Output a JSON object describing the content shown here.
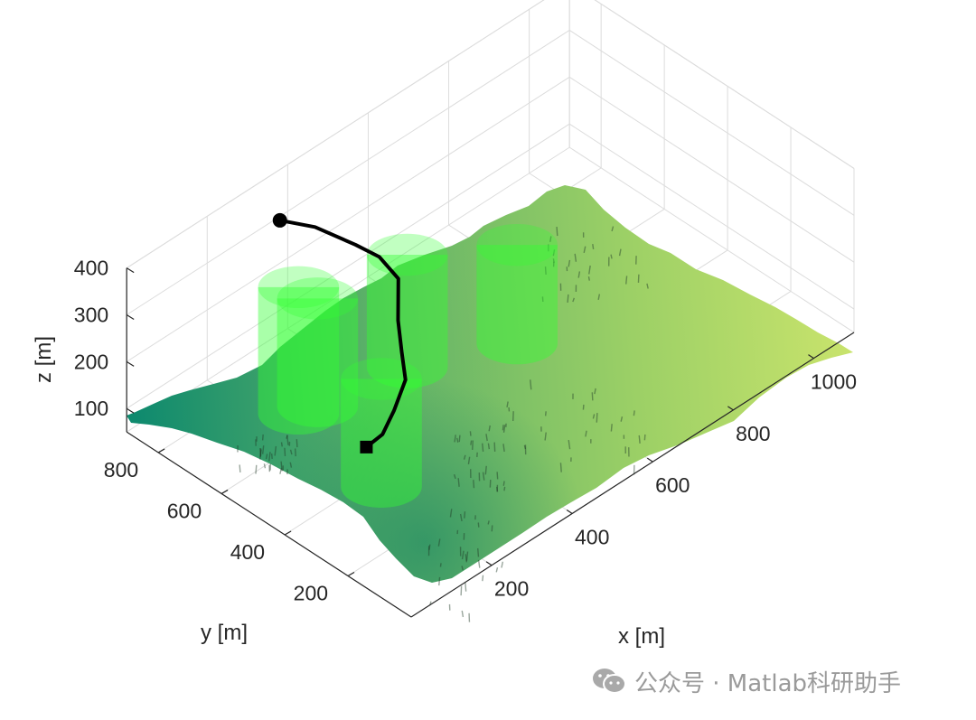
{
  "chart_data": {
    "type": "surface3d",
    "title": "",
    "xlabel": "x [m]",
    "ylabel": "y [m]",
    "zlabel": "z [m]",
    "xlim": [
      0,
      1100
    ],
    "ylim": [
      0,
      900
    ],
    "zlim": [
      50,
      400
    ],
    "x_ticks": [
      "200",
      "400",
      "600",
      "800",
      "1000"
    ],
    "y_ticks": [
      "200",
      "400",
      "600",
      "800"
    ],
    "z_ticks": [
      "100",
      "200",
      "300",
      "400"
    ],
    "grid": true,
    "terrain_colormap": [
      "#0f8a6e",
      "#5fb267",
      "#9cd066",
      "#c8e36c"
    ],
    "obstacle_color": "#33ff33",
    "obstacles": [
      {
        "label": "cylinder 1",
        "x": 160,
        "y": 560,
        "z_bottom": 150,
        "z_top": 420,
        "radius": 80
      },
      {
        "label": "cylinder 2",
        "x": 270,
        "y": 640,
        "z_bottom": 70,
        "z_top": 300,
        "radius": 80
      },
      {
        "label": "cylinder 3",
        "x": 430,
        "y": 560,
        "z_bottom": 100,
        "z_top": 340,
        "radius": 80
      },
      {
        "label": "cylinder 4",
        "x": 240,
        "y": 400,
        "z_bottom": 20,
        "z_top": 250,
        "radius": 80
      },
      {
        "label": "cylinder 5",
        "x": 640,
        "y": 480,
        "z_bottom": 70,
        "z_top": 280,
        "radius": 80
      }
    ],
    "path": {
      "color": "#000000",
      "start_marker": "square",
      "end_marker": "circle",
      "points": [
        {
          "x": 140,
          "y": 320,
          "z": 195
        },
        {
          "x": 180,
          "y": 320,
          "z": 200
        },
        {
          "x": 240,
          "y": 360,
          "z": 200
        },
        {
          "x": 300,
          "y": 400,
          "z": 215
        },
        {
          "x": 330,
          "y": 450,
          "z": 235
        },
        {
          "x": 360,
          "y": 500,
          "z": 265
        },
        {
          "x": 400,
          "y": 550,
          "z": 310
        },
        {
          "x": 400,
          "y": 610,
          "z": 330
        },
        {
          "x": 380,
          "y": 660,
          "z": 345
        },
        {
          "x": 350,
          "y": 750,
          "z": 360
        },
        {
          "x": 310,
          "y": 810,
          "z": 370
        }
      ]
    }
  },
  "watermark": {
    "icon": "wechat-icon",
    "text": "公众号 · Matlab科研助手"
  }
}
